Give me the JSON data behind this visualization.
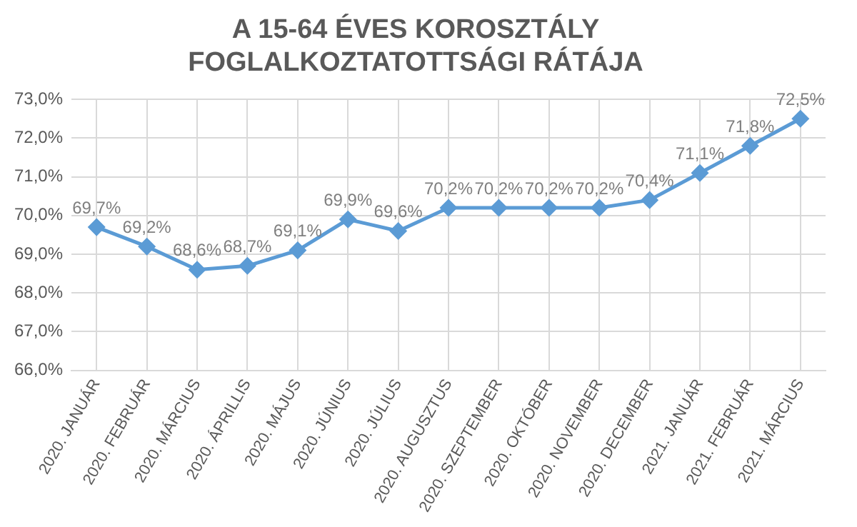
{
  "chart_data": {
    "type": "line",
    "title": "A 15-64 ÉVES KOROSZTÁLY\nFOGLALKOZTATOTTSÁGI RÁTÁJA",
    "categories": [
      "2020. JANUÁR",
      "2020. FEBRUÁR",
      "2020. MÁRCIUS",
      "2020. ÁPRILLIS",
      "2020. MÁJUS",
      "2020. JÚNIUS",
      "2020. JÚLIUS",
      "2020. AUGUSZTUS",
      "2020. SZEPTEMBER",
      "2020. OKTÓBER",
      "2020. NOVEMBER",
      "2020. DECEMBER",
      "2021. JANUÁR",
      "2021. FEBRUÁR",
      "2021. MÁRCIUS"
    ],
    "series": [
      {
        "color": "#5b9bd5",
        "values": [
          69.7,
          69.2,
          68.6,
          68.7,
          69.1,
          69.9,
          69.6,
          70.2,
          70.2,
          70.2,
          70.2,
          70.4,
          71.1,
          71.8,
          72.5
        ],
        "value_labels": [
          "69,7%",
          "69,2%",
          "68,6%",
          "68,7%",
          "69,1%",
          "69,9%",
          "69,6%",
          "70,2%",
          "70,2%",
          "70,2%",
          "70,2%",
          "70,4%",
          "71,1%",
          "71,8%",
          "72,5%"
        ]
      }
    ],
    "ylim": [
      66,
      73
    ],
    "yticks": [
      {
        "value": 66,
        "label": "66,0%"
      },
      {
        "value": 67,
        "label": "67,0%"
      },
      {
        "value": 68,
        "label": "68,0%"
      },
      {
        "value": 69,
        "label": "69,0%"
      },
      {
        "value": 70,
        "label": "70,0%"
      },
      {
        "value": 71,
        "label": "71,0%"
      },
      {
        "value": 72,
        "label": "72,0%"
      },
      {
        "value": 73,
        "label": "73,0%"
      }
    ],
    "grid": true,
    "legend": false,
    "marker": "diamond",
    "line_style": "solid"
  }
}
